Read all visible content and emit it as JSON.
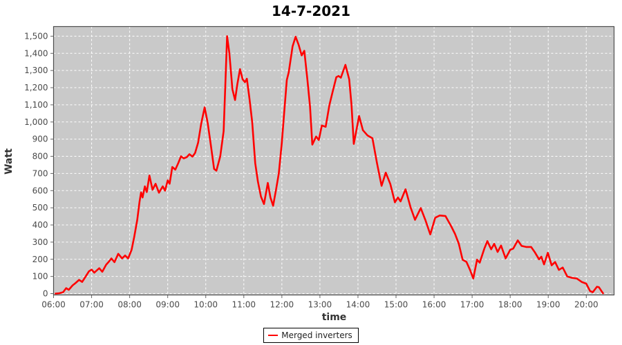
{
  "colors": {
    "series_red": "#ff0000",
    "plot_background": "#c9c9c9",
    "grid_line": "#ffffff",
    "plot_border": "#4d4d4d",
    "tick_mark": "#666666",
    "tick_label": "#4a4a4a",
    "title_text": "#000000",
    "page_background": "#ffffff"
  },
  "chart_data": {
    "type": "line",
    "title": "14-7-2021",
    "xlabel": "time",
    "ylabel": "Watt",
    "grid": true,
    "legend_position": "bottom-center",
    "x_ticks": [
      {
        "hour": 6,
        "label": "06:00"
      },
      {
        "hour": 7,
        "label": "07:00"
      },
      {
        "hour": 8,
        "label": "08:00"
      },
      {
        "hour": 9,
        "label": "09:00"
      },
      {
        "hour": 10,
        "label": "10:00"
      },
      {
        "hour": 11,
        "label": "11:00"
      },
      {
        "hour": 12,
        "label": "12:00"
      },
      {
        "hour": 13,
        "label": "13:00"
      },
      {
        "hour": 14,
        "label": "14:00"
      },
      {
        "hour": 15,
        "label": "15:00"
      },
      {
        "hour": 16,
        "label": "16:00"
      },
      {
        "hour": 17,
        "label": "17:00"
      },
      {
        "hour": 18,
        "label": "18:00"
      },
      {
        "hour": 19,
        "label": "19:00"
      },
      {
        "hour": 20,
        "label": "20:00"
      }
    ],
    "y_ticks": [
      {
        "value": 0,
        "label": "0"
      },
      {
        "value": 100,
        "label": "100"
      },
      {
        "value": 200,
        "label": "200"
      },
      {
        "value": 300,
        "label": "300"
      },
      {
        "value": 400,
        "label": "400"
      },
      {
        "value": 500,
        "label": "500"
      },
      {
        "value": 600,
        "label": "600"
      },
      {
        "value": 700,
        "label": "700"
      },
      {
        "value": 800,
        "label": "800"
      },
      {
        "value": 900,
        "label": "900"
      },
      {
        "value": 1000,
        "label": "1,000"
      },
      {
        "value": 1100,
        "label": "1,100"
      },
      {
        "value": 1200,
        "label": "1,200"
      },
      {
        "value": 1300,
        "label": "1,300"
      },
      {
        "value": 1400,
        "label": "1,400"
      },
      {
        "value": 1500,
        "label": "1,500"
      }
    ],
    "xlim_hours": [
      6,
      20.73
    ],
    "ylim": [
      -8,
      1556
    ],
    "legend": {
      "entries": [
        {
          "label": "Merged inverters",
          "color": "#ff0000"
        }
      ]
    },
    "series": [
      {
        "name": "Merged inverters",
        "color": "#ff0000",
        "points_time_watt": [
          [
            6.05,
            0
          ],
          [
            6.15,
            2
          ],
          [
            6.25,
            8
          ],
          [
            6.33,
            32
          ],
          [
            6.4,
            22
          ],
          [
            6.5,
            48
          ],
          [
            6.58,
            62
          ],
          [
            6.67,
            80
          ],
          [
            6.75,
            68
          ],
          [
            6.83,
            95
          ],
          [
            6.93,
            130
          ],
          [
            7.0,
            140
          ],
          [
            7.07,
            122
          ],
          [
            7.15,
            138
          ],
          [
            7.2,
            148
          ],
          [
            7.28,
            127
          ],
          [
            7.38,
            168
          ],
          [
            7.45,
            185
          ],
          [
            7.52,
            205
          ],
          [
            7.6,
            183
          ],
          [
            7.7,
            232
          ],
          [
            7.8,
            205
          ],
          [
            7.88,
            222
          ],
          [
            7.96,
            205
          ],
          [
            8.05,
            255
          ],
          [
            8.12,
            330
          ],
          [
            8.2,
            430
          ],
          [
            8.26,
            535
          ],
          [
            8.3,
            590
          ],
          [
            8.34,
            560
          ],
          [
            8.4,
            625
          ],
          [
            8.45,
            592
          ],
          [
            8.52,
            688
          ],
          [
            8.6,
            605
          ],
          [
            8.68,
            640
          ],
          [
            8.77,
            588
          ],
          [
            8.87,
            625
          ],
          [
            8.93,
            600
          ],
          [
            9.0,
            660
          ],
          [
            9.05,
            640
          ],
          [
            9.12,
            738
          ],
          [
            9.2,
            722
          ],
          [
            9.28,
            762
          ],
          [
            9.35,
            800
          ],
          [
            9.42,
            788
          ],
          [
            9.5,
            795
          ],
          [
            9.57,
            812
          ],
          [
            9.65,
            798
          ],
          [
            9.72,
            820
          ],
          [
            9.8,
            880
          ],
          [
            9.88,
            990
          ],
          [
            9.97,
            1085
          ],
          [
            10.05,
            995
          ],
          [
            10.13,
            870
          ],
          [
            10.22,
            726
          ],
          [
            10.28,
            716
          ],
          [
            10.38,
            800
          ],
          [
            10.47,
            947
          ],
          [
            10.51,
            1190
          ],
          [
            10.56,
            1500
          ],
          [
            10.62,
            1400
          ],
          [
            10.7,
            1190
          ],
          [
            10.77,
            1128
          ],
          [
            10.83,
            1220
          ],
          [
            10.9,
            1308
          ],
          [
            10.97,
            1248
          ],
          [
            11.03,
            1232
          ],
          [
            11.08,
            1252
          ],
          [
            11.15,
            1135
          ],
          [
            11.22,
            1000
          ],
          [
            11.3,
            760
          ],
          [
            11.37,
            652
          ],
          [
            11.45,
            565
          ],
          [
            11.53,
            522
          ],
          [
            11.63,
            645
          ],
          [
            11.7,
            560
          ],
          [
            11.77,
            512
          ],
          [
            11.85,
            610
          ],
          [
            11.92,
            700
          ],
          [
            12.0,
            880
          ],
          [
            12.07,
            1080
          ],
          [
            12.13,
            1245
          ],
          [
            12.18,
            1290
          ],
          [
            12.28,
            1440
          ],
          [
            12.36,
            1497
          ],
          [
            12.44,
            1450
          ],
          [
            12.52,
            1388
          ],
          [
            12.59,
            1415
          ],
          [
            12.67,
            1250
          ],
          [
            12.74,
            1090
          ],
          [
            12.8,
            868
          ],
          [
            12.9,
            915
          ],
          [
            12.97,
            895
          ],
          [
            13.05,
            980
          ],
          [
            13.15,
            972
          ],
          [
            13.25,
            1100
          ],
          [
            13.34,
            1181
          ],
          [
            13.43,
            1261
          ],
          [
            13.49,
            1268
          ],
          [
            13.55,
            1258
          ],
          [
            13.67,
            1333
          ],
          [
            13.77,
            1248
          ],
          [
            13.83,
            1100
          ],
          [
            13.89,
            872
          ],
          [
            14.03,
            1035
          ],
          [
            14.13,
            952
          ],
          [
            14.25,
            922
          ],
          [
            14.38,
            905
          ],
          [
            14.5,
            760
          ],
          [
            14.62,
            628
          ],
          [
            14.73,
            705
          ],
          [
            14.85,
            638
          ],
          [
            14.97,
            532
          ],
          [
            15.05,
            560
          ],
          [
            15.12,
            537
          ],
          [
            15.25,
            608
          ],
          [
            15.38,
            505
          ],
          [
            15.5,
            430
          ],
          [
            15.65,
            498
          ],
          [
            15.77,
            430
          ],
          [
            15.9,
            345
          ],
          [
            16.03,
            442
          ],
          [
            16.15,
            455
          ],
          [
            16.3,
            452
          ],
          [
            16.45,
            392
          ],
          [
            16.55,
            348
          ],
          [
            16.65,
            290
          ],
          [
            16.75,
            197
          ],
          [
            16.85,
            185
          ],
          [
            16.95,
            135
          ],
          [
            17.03,
            88
          ],
          [
            17.13,
            198
          ],
          [
            17.2,
            180
          ],
          [
            17.32,
            262
          ],
          [
            17.4,
            306
          ],
          [
            17.5,
            258
          ],
          [
            17.58,
            290
          ],
          [
            17.67,
            243
          ],
          [
            17.76,
            280
          ],
          [
            17.88,
            205
          ],
          [
            18.0,
            255
          ],
          [
            18.08,
            262
          ],
          [
            18.2,
            310
          ],
          [
            18.3,
            278
          ],
          [
            18.42,
            272
          ],
          [
            18.55,
            272
          ],
          [
            18.65,
            240
          ],
          [
            18.76,
            200
          ],
          [
            18.82,
            215
          ],
          [
            18.89,
            170
          ],
          [
            18.99,
            238
          ],
          [
            19.09,
            165
          ],
          [
            19.18,
            184
          ],
          [
            19.28,
            138
          ],
          [
            19.38,
            152
          ],
          [
            19.5,
            100
          ],
          [
            19.62,
            92
          ],
          [
            19.75,
            88
          ],
          [
            19.88,
            68
          ],
          [
            20.0,
            58
          ],
          [
            20.1,
            15
          ],
          [
            20.17,
            8
          ],
          [
            20.28,
            40
          ],
          [
            20.33,
            38
          ],
          [
            20.4,
            15
          ],
          [
            20.44,
            2
          ]
        ]
      }
    ]
  }
}
